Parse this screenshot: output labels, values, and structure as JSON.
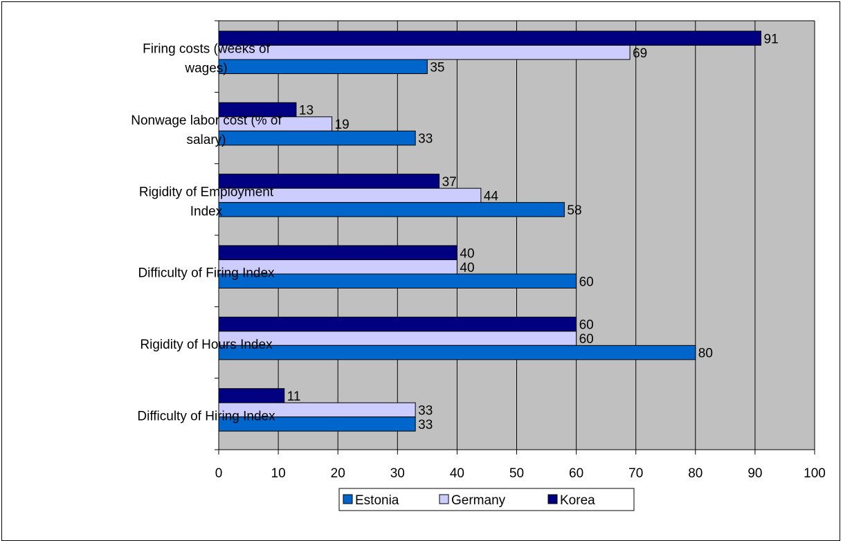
{
  "chart_data": {
    "type": "bar",
    "orientation": "horizontal",
    "categories": [
      [
        "Firing costs (weeks of",
        "wages)"
      ],
      [
        "Nonwage labor cost (% of",
        "salary)"
      ],
      [
        "Rigidity of Employment",
        "Index"
      ],
      [
        "Difficulty of Firing Index"
      ],
      [
        "Rigidity of Hours Index"
      ],
      [
        "Difficulty of Hiring Index"
      ]
    ],
    "series": [
      {
        "name": "Korea",
        "color": "#000080",
        "values": [
          91,
          13,
          37,
          40,
          60,
          11
        ]
      },
      {
        "name": "Germany",
        "color": "#ccccff",
        "values": [
          69,
          19,
          44,
          40,
          60,
          33
        ]
      },
      {
        "name": "Estonia",
        "color": "#0066cc",
        "values": [
          35,
          33,
          58,
          60,
          80,
          33
        ]
      }
    ],
    "legend_order": [
      "Estonia",
      "Germany",
      "Korea"
    ],
    "xlim": [
      0,
      100
    ],
    "xticks": [
      0,
      10,
      20,
      30,
      40,
      50,
      60,
      70,
      80,
      90,
      100
    ],
    "grid": true,
    "plot_background": "#c0c0c0",
    "legend_position": "bottom",
    "title": "",
    "xlabel": "",
    "ylabel": ""
  }
}
